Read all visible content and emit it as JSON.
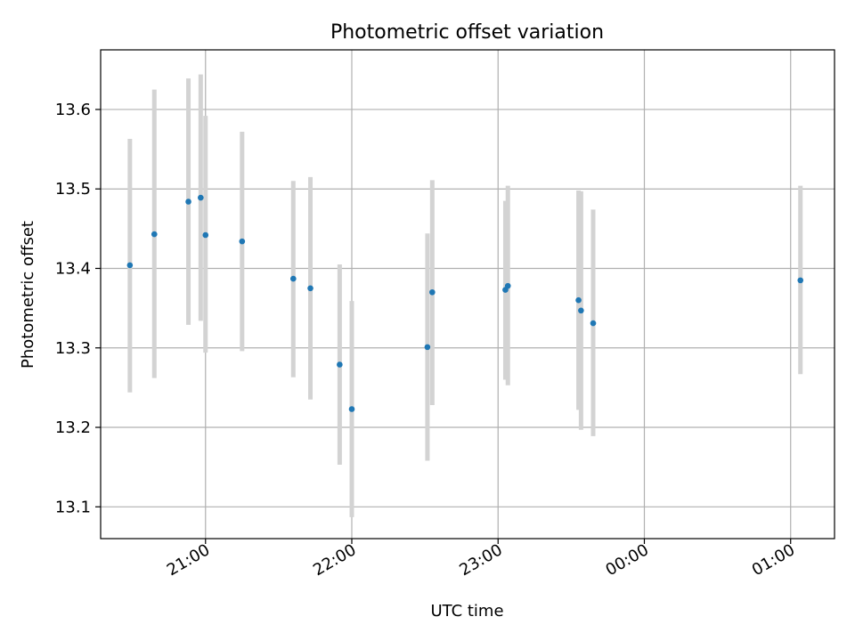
{
  "chart_data": {
    "type": "scatter",
    "title": "Photometric offset variation",
    "xlabel": "UTC time",
    "ylabel": "Photometric offset",
    "x_tick_labels": [
      "21:00",
      "22:00",
      "23:00",
      "00:00",
      "01:00"
    ],
    "x_tick_values_hours": [
      21,
      22,
      23,
      24,
      25
    ],
    "y_ticks": [
      13.1,
      13.2,
      13.3,
      13.4,
      13.5,
      13.6
    ],
    "xlim_hours": [
      20.283,
      25.3
    ],
    "ylim": [
      13.06,
      13.675
    ],
    "grid": true,
    "marker_color": "#1f77b4",
    "errorbar_color": "#d3d3d3",
    "points": [
      {
        "x": 20.483,
        "y": 13.404,
        "ylo": 13.244,
        "yhi": 13.563
      },
      {
        "x": 20.65,
        "y": 13.443,
        "ylo": 13.262,
        "yhi": 13.625
      },
      {
        "x": 20.883,
        "y": 13.484,
        "ylo": 13.329,
        "yhi": 13.639
      },
      {
        "x": 20.967,
        "y": 13.489,
        "ylo": 13.334,
        "yhi": 13.644
      },
      {
        "x": 21.0,
        "y": 13.442,
        "ylo": 13.294,
        "yhi": 13.592
      },
      {
        "x": 21.25,
        "y": 13.434,
        "ylo": 13.296,
        "yhi": 13.572
      },
      {
        "x": 21.6,
        "y": 13.387,
        "ylo": 13.263,
        "yhi": 13.51
      },
      {
        "x": 21.717,
        "y": 13.375,
        "ylo": 13.235,
        "yhi": 13.515
      },
      {
        "x": 21.917,
        "y": 13.279,
        "ylo": 13.153,
        "yhi": 13.405
      },
      {
        "x": 22.0,
        "y": 13.223,
        "ylo": 13.087,
        "yhi": 13.359
      },
      {
        "x": 22.517,
        "y": 13.301,
        "ylo": 13.158,
        "yhi": 13.444
      },
      {
        "x": 22.55,
        "y": 13.37,
        "ylo": 13.228,
        "yhi": 13.511
      },
      {
        "x": 23.05,
        "y": 13.373,
        "ylo": 13.26,
        "yhi": 13.485
      },
      {
        "x": 23.067,
        "y": 13.378,
        "ylo": 13.253,
        "yhi": 13.504
      },
      {
        "x": 23.55,
        "y": 13.36,
        "ylo": 13.222,
        "yhi": 13.498
      },
      {
        "x": 23.567,
        "y": 13.347,
        "ylo": 13.197,
        "yhi": 13.497
      },
      {
        "x": 23.65,
        "y": 13.331,
        "ylo": 13.189,
        "yhi": 13.474
      },
      {
        "x": 25.067,
        "y": 13.385,
        "ylo": 13.267,
        "yhi": 13.504
      }
    ]
  }
}
